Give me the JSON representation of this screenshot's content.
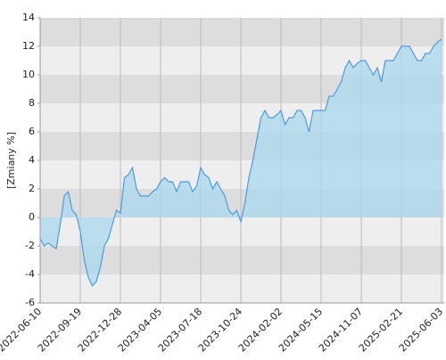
{
  "chart_data": {
    "type": "area",
    "ylabel": "[Zmiany %]",
    "categories": [
      "2022-06-10",
      null,
      null,
      null,
      null,
      null,
      null,
      null,
      null,
      null,
      "2022-09-19",
      null,
      null,
      null,
      null,
      null,
      null,
      null,
      null,
      null,
      "2022-12-28",
      null,
      null,
      null,
      null,
      null,
      null,
      null,
      null,
      null,
      "2023-04-05",
      null,
      null,
      null,
      null,
      null,
      null,
      null,
      null,
      null,
      "2023-07-18",
      null,
      null,
      null,
      null,
      null,
      null,
      null,
      null,
      null,
      "2023-10-24",
      null,
      null,
      null,
      null,
      null,
      null,
      null,
      null,
      null,
      "2024-02-02",
      null,
      null,
      null,
      null,
      null,
      null,
      null,
      null,
      null,
      "2024-05-15",
      null,
      null,
      null,
      null,
      null,
      null,
      null,
      null,
      null,
      "2024-11-07",
      null,
      null,
      null,
      null,
      null,
      null,
      null,
      null,
      null,
      "2025-02-21",
      null,
      null,
      null,
      null,
      null,
      null,
      null,
      null,
      null,
      "2025-06-03"
    ],
    "values": [
      -1.5,
      -2,
      -1.8,
      -2,
      -2.2,
      -0.5,
      1.5,
      1.8,
      0.5,
      0.2,
      -1,
      -3,
      -4.2,
      -4.8,
      -4.5,
      -3.5,
      -2,
      -1.5,
      -0.5,
      0.5,
      0.3,
      2.8,
      3,
      3.5,
      2,
      1.5,
      1.5,
      1.5,
      1.8,
      2,
      2.5,
      2.8,
      2.5,
      2.5,
      1.8,
      2.5,
      2.5,
      2.5,
      1.8,
      2.2,
      3.5,
      3,
      2.8,
      2,
      2.5,
      2,
      1.5,
      0.5,
      0.2,
      0.5,
      -0.3,
      1,
      2.8,
      4,
      5.5,
      7,
      7.5,
      7,
      7,
      7.2,
      7.5,
      6.5,
      7,
      7,
      7.5,
      7.5,
      7,
      6,
      7.5,
      7.5,
      7.5,
      7.5,
      8.5,
      8.5,
      9,
      9.5,
      10.5,
      11,
      10.5,
      10.8,
      11,
      11,
      10.5,
      10,
      10.5,
      9.5,
      11,
      11,
      11,
      11.5,
      12,
      12,
      12,
      11.5,
      11,
      11,
      11.5,
      11.5,
      12,
      12.3,
      12.5
    ],
    "color": "#4a9be6",
    "fill_color": "#a8d8ee",
    "ylim": [
      -6,
      14
    ],
    "yticks": [
      -6,
      -4,
      -2,
      0,
      2,
      4,
      6,
      8,
      10,
      12,
      14
    ],
    "band_colors": [
      "#eeeeee",
      "#dddddd"
    ]
  }
}
